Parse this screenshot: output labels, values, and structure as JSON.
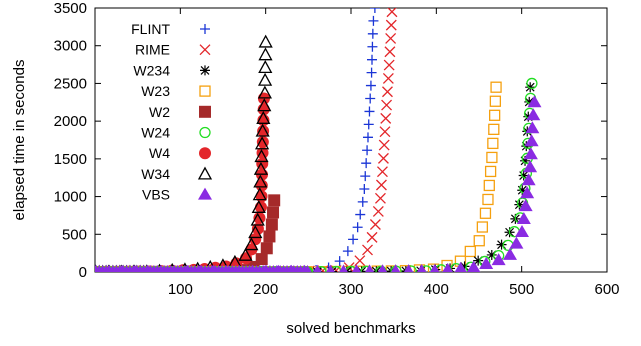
{
  "chart_data": {
    "type": "scatter",
    "xlabel": "solved benchmarks",
    "ylabel": "elapsed time in seconds",
    "xlim": [
      0,
      600
    ],
    "ylim": [
      0,
      3500
    ],
    "x_ticks": [
      100,
      200,
      300,
      400,
      500,
      600
    ],
    "y_ticks": [
      0,
      500,
      1000,
      1500,
      2000,
      2500,
      3000,
      3500
    ],
    "grid": false,
    "legend_position": "top-left",
    "series": [
      {
        "name": "FLINT",
        "marker": "plus",
        "color": "#1a35d6",
        "control": [
          [
            1,
            0
          ],
          [
            150,
            4
          ],
          [
            250,
            15
          ],
          [
            270,
            40
          ],
          [
            285,
            120
          ],
          [
            298,
            300
          ],
          [
            308,
            600
          ],
          [
            315,
            1000
          ],
          [
            320,
            1800
          ],
          [
            324,
            2600
          ],
          [
            326,
            3300
          ],
          [
            328,
            3500
          ]
        ],
        "count": 40
      },
      {
        "name": "RIME",
        "marker": "cross",
        "color": "#e3262a",
        "control": [
          [
            1,
            0
          ],
          [
            200,
            4
          ],
          [
            285,
            20
          ],
          [
            305,
            80
          ],
          [
            318,
            250
          ],
          [
            326,
            500
          ],
          [
            334,
            900
          ],
          [
            338,
            1500
          ],
          [
            341,
            2100
          ],
          [
            344,
            2600
          ],
          [
            346,
            3000
          ],
          [
            348,
            3450
          ]
        ],
        "count": 40
      },
      {
        "name": "W234",
        "marker": "asterisk",
        "color": "#000000",
        "control": [
          [
            1,
            0
          ],
          [
            250,
            3
          ],
          [
            380,
            15
          ],
          [
            430,
            60
          ],
          [
            470,
            250
          ],
          [
            490,
            600
          ],
          [
            500,
            1000
          ],
          [
            505,
            1600
          ],
          [
            508,
            2100
          ],
          [
            510,
            2450
          ]
        ],
        "count": 40
      },
      {
        "name": "W23",
        "marker": "square-open",
        "color": "#f5a00f",
        "control": [
          [
            1,
            0
          ],
          [
            250,
            3
          ],
          [
            360,
            15
          ],
          [
            400,
            40
          ],
          [
            430,
            150
          ],
          [
            450,
            400
          ],
          [
            460,
            900
          ],
          [
            465,
            1500
          ],
          [
            468,
            2000
          ],
          [
            470,
            2450
          ]
        ],
        "count": 40
      },
      {
        "name": "W2",
        "marker": "square-filled",
        "color": "#a52a2a",
        "control": [
          [
            1,
            0
          ],
          [
            100,
            3
          ],
          [
            170,
            20
          ],
          [
            190,
            80
          ],
          [
            200,
            250
          ],
          [
            207,
            600
          ],
          [
            210,
            950
          ]
        ],
        "count": 20
      },
      {
        "name": "W24",
        "marker": "circle-open",
        "color": "#22dd22",
        "control": [
          [
            1,
            0
          ],
          [
            250,
            3
          ],
          [
            390,
            15
          ],
          [
            440,
            60
          ],
          [
            480,
            250
          ],
          [
            498,
            700
          ],
          [
            505,
            1200
          ],
          [
            508,
            1800
          ],
          [
            510,
            2250
          ],
          [
            512,
            2500
          ]
        ],
        "count": 40
      },
      {
        "name": "W4",
        "marker": "circle-filled",
        "color": "#e3262a",
        "control": [
          [
            1,
            0
          ],
          [
            60,
            5
          ],
          [
            120,
            30
          ],
          [
            160,
            80
          ],
          [
            180,
            200
          ],
          [
            190,
            500
          ],
          [
            195,
            900
          ],
          [
            196,
            1450
          ],
          [
            197,
            1850
          ],
          [
            198,
            2300
          ]
        ],
        "count": 30
      },
      {
        "name": "W34",
        "marker": "triangle-open",
        "color": "#000000",
        "control": [
          [
            1,
            0
          ],
          [
            60,
            5
          ],
          [
            120,
            40
          ],
          [
            160,
            100
          ],
          [
            180,
            250
          ],
          [
            190,
            600
          ],
          [
            193,
            1000
          ],
          [
            195,
            1500
          ],
          [
            197,
            2000
          ],
          [
            199,
            2300
          ],
          [
            200,
            3050
          ]
        ],
        "count": 30
      },
      {
        "name": "VBS",
        "marker": "triangle-filled",
        "color": "#8a2be2",
        "control": [
          [
            1,
            0
          ],
          [
            250,
            3
          ],
          [
            400,
            15
          ],
          [
            445,
            60
          ],
          [
            485,
            200
          ],
          [
            500,
            500
          ],
          [
            505,
            900
          ],
          [
            510,
            1400
          ],
          [
            513,
            2000
          ],
          [
            515,
            2250
          ]
        ],
        "count": 45
      }
    ]
  }
}
